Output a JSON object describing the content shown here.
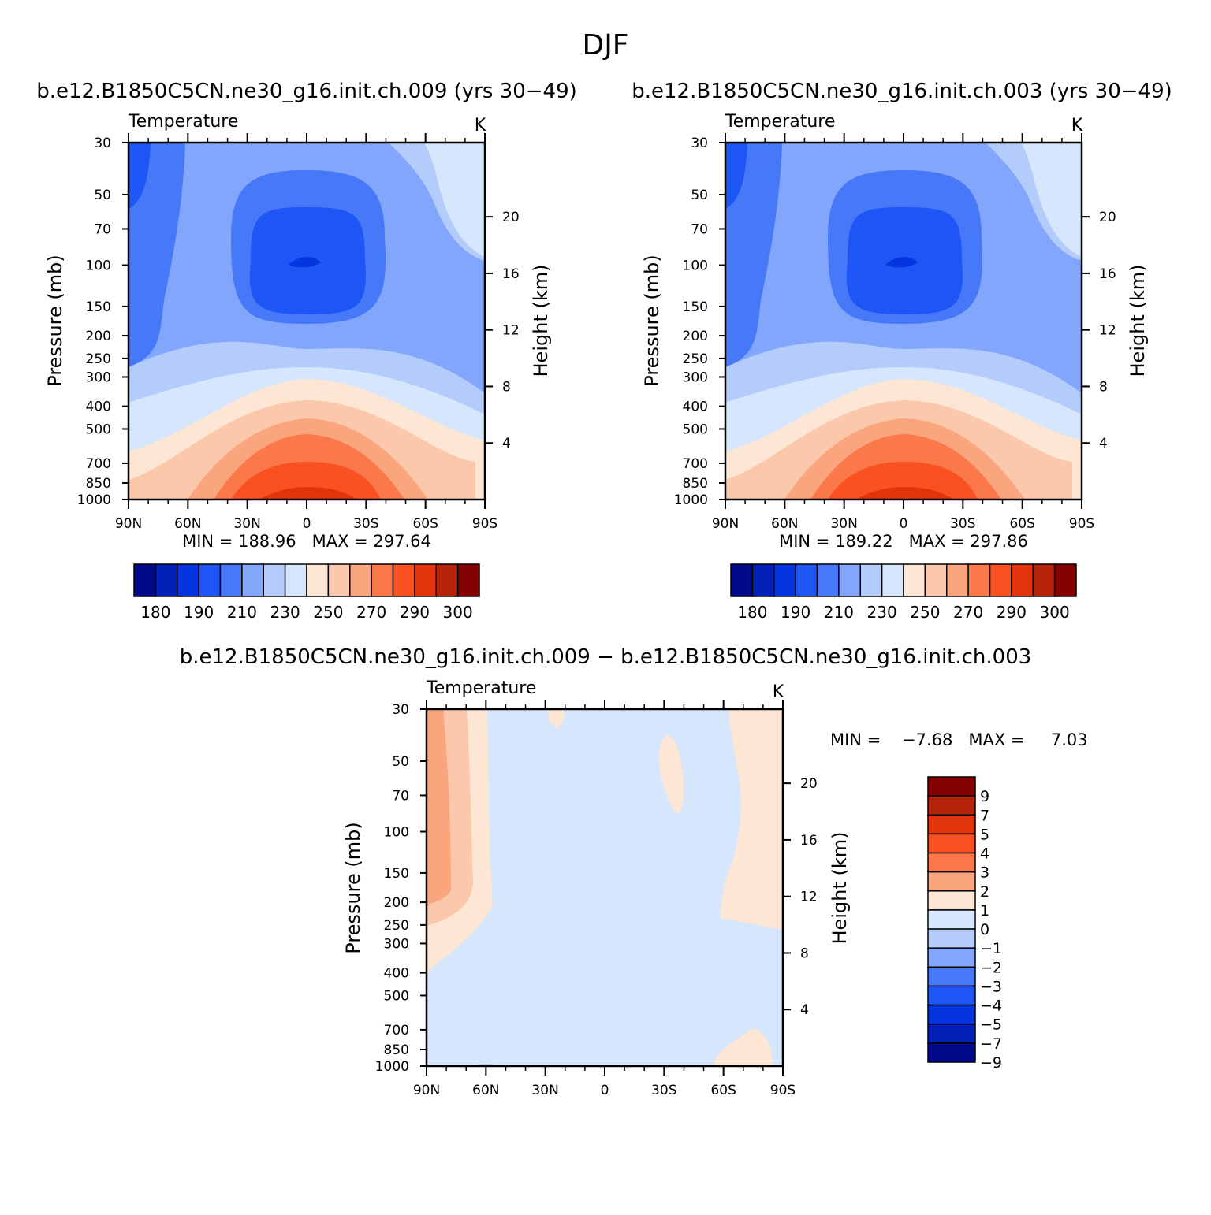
{
  "page_title": "DJF",
  "panels": {
    "top_left": {
      "case_title": "b.e12.B1850C5CN.ne30_g16.init.ch.009 (yrs 30−49)",
      "variable": "Temperature",
      "units": "K",
      "stats": "MIN = 188.96   MAX = 297.64"
    },
    "top_right": {
      "case_title": "b.e12.B1850C5CN.ne30_g16.init.ch.003 (yrs 30−49)",
      "variable": "Temperature",
      "units": "K",
      "stats": "MIN = 189.22   MAX = 297.86"
    },
    "diff": {
      "case_title": "b.e12.B1850C5CN.ne30_g16.init.ch.009 − b.e12.B1850C5CN.ne30_g16.init.ch.003",
      "variable": "Temperature",
      "units": "K",
      "stats": "MIN =    −7.68   MAX =     7.03"
    }
  },
  "axes": {
    "y_label_left": "Pressure (mb)",
    "y_label_right": "Height (km)",
    "pressure_ticks": [
      "30",
      "50",
      "70",
      "100",
      "150",
      "200",
      "250",
      "300",
      "400",
      "500",
      "700",
      "850",
      "1000"
    ],
    "height_ticks": [
      "20",
      "16",
      "12",
      "8",
      "4"
    ],
    "lat_ticks": [
      "90N",
      "60N",
      "30N",
      "0",
      "30S",
      "60S",
      "90S"
    ]
  },
  "colorbars": {
    "abs_tick_labels": [
      "180",
      "190",
      "210",
      "230",
      "250",
      "270",
      "290",
      "300"
    ],
    "abs_colors": [
      "#000a8a",
      "#0020b8",
      "#0535de",
      "#1e55f5",
      "#4678f8",
      "#82a6fc",
      "#b4ccfc",
      "#d6e6fc",
      "#fde6d4",
      "#fcc8ab",
      "#fba57e",
      "#fa784a",
      "#f9511f",
      "#e2330b",
      "#b5230a",
      "#850000"
    ],
    "diff_tick_labels": [
      "9",
      "7",
      "5",
      "4",
      "3",
      "2",
      "1",
      "0",
      "−1",
      "−2",
      "−3",
      "−4",
      "−5",
      "−7",
      "−9"
    ],
    "diff_colors": [
      "#850000",
      "#b5230a",
      "#e2330b",
      "#f9511f",
      "#fa784a",
      "#fba57e",
      "#fde6d4",
      "#d6e6fc",
      "#b4ccfc",
      "#82a6fc",
      "#4678f8",
      "#1e55f5",
      "#0535de",
      "#0020b8",
      "#000a8a"
    ]
  },
  "chart_data": [
    {
      "type": "heatmap",
      "title": "b.e12.B1850C5CN.ne30_g16.init.ch.009 (yrs 30−49)",
      "subtitle": "Temperature",
      "units": "K",
      "xlabel": "",
      "ylabel": "Pressure (mb)",
      "y2label": "Height (km)",
      "x_ticks": [
        "90N",
        "60N",
        "30N",
        "0",
        "30S",
        "60S",
        "90S"
      ],
      "xlim": [
        90,
        -90
      ],
      "ylim": [
        1000,
        30
      ],
      "y_scale": "log",
      "min": 188.96,
      "max": 297.64,
      "contour_levels": [
        180,
        185,
        190,
        200,
        210,
        220,
        230,
        240,
        250,
        260,
        270,
        280,
        290,
        295,
        300
      ],
      "description_of_field": "cold minimum ~190 K near 100 mb at equator; warm maximum ~295 K near surface at equator"
    },
    {
      "type": "heatmap",
      "title": "b.e12.B1850C5CN.ne30_g16.init.ch.003 (yrs 30−49)",
      "subtitle": "Temperature",
      "units": "K",
      "ylabel": "Pressure (mb)",
      "y2label": "Height (km)",
      "x_ticks": [
        "90N",
        "60N",
        "30N",
        "0",
        "30S",
        "60S",
        "90S"
      ],
      "xlim": [
        90,
        -90
      ],
      "ylim": [
        1000,
        30
      ],
      "y_scale": "log",
      "min": 189.22,
      "max": 297.86,
      "contour_levels": [
        180,
        185,
        190,
        200,
        210,
        220,
        230,
        240,
        250,
        260,
        270,
        280,
        290,
        295,
        300
      ]
    },
    {
      "type": "heatmap",
      "title": "b.e12.B1850C5CN.ne30_g16.init.ch.009 − b.e12.B1850C5CN.ne30_g16.init.ch.003",
      "subtitle": "Temperature",
      "units": "K",
      "ylabel": "Pressure (mb)",
      "y2label": "Height (km)",
      "x_ticks": [
        "90N",
        "60N",
        "30N",
        "0",
        "30S",
        "60S",
        "90S"
      ],
      "xlim": [
        90,
        -90
      ],
      "ylim": [
        1000,
        30
      ],
      "y_scale": "log",
      "min": -7.68,
      "max": 7.03,
      "contour_levels": [
        -9,
        -7,
        -5,
        -4,
        -3,
        -2,
        -1,
        0,
        1,
        2,
        3,
        4,
        5,
        7,
        9
      ]
    }
  ]
}
